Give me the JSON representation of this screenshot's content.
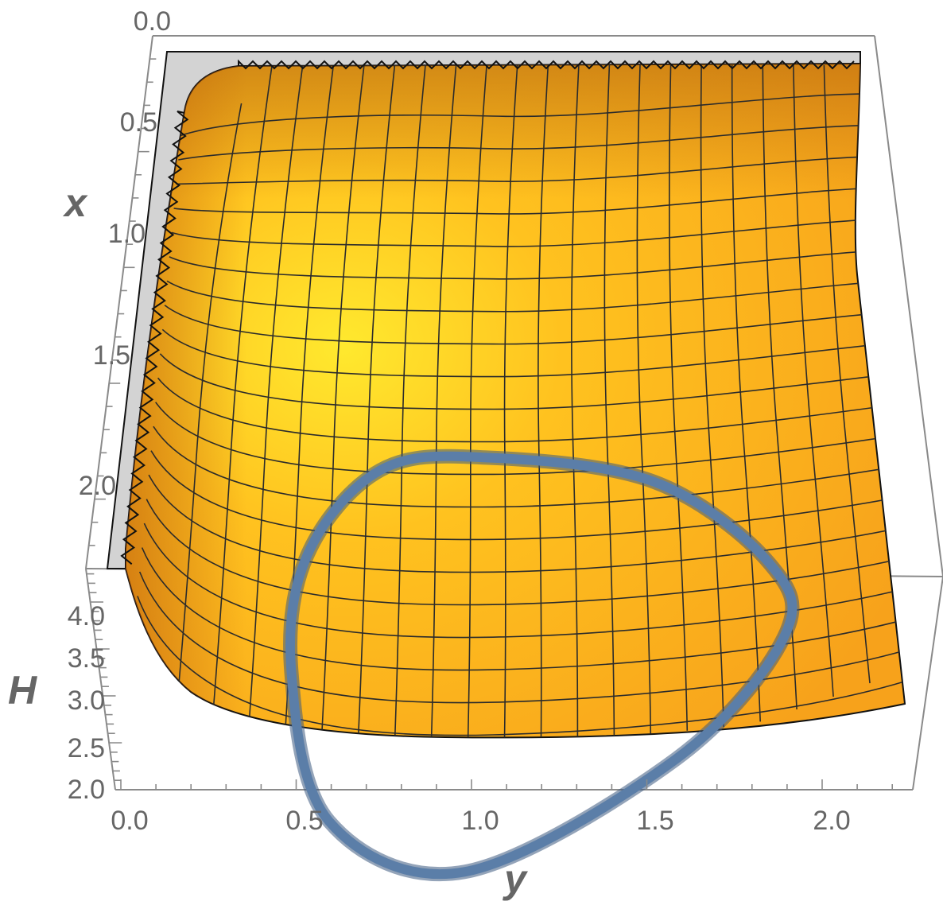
{
  "chart_data": {
    "type": "surface3d",
    "title": "",
    "axes": {
      "x": {
        "label": "x",
        "range": [
          0.0,
          2.3
        ],
        "ticks": [
          "0.0",
          "0.5",
          "1.0",
          "1.5",
          "2.0"
        ]
      },
      "y": {
        "label": "y",
        "range": [
          0.0,
          2.2
        ],
        "ticks": [
          "0.0",
          "0.5",
          "1.0",
          "1.5",
          "2.0"
        ]
      },
      "z": {
        "label": "H",
        "range": [
          2.0,
          4.3
        ],
        "ticks": [
          "2.0",
          "2.5",
          "3.0",
          "3.5",
          "4.0"
        ]
      }
    },
    "surface": {
      "name": "H(x, y)",
      "color": "#F7A21B",
      "highlight_color": "#FFE92E",
      "mesh_color": "#2B2B2B",
      "mesh_lines_y": 20,
      "mesh_lines_x": 20,
      "shape": "valley with minimum near x = 1.4, y = 1.0; rises steeply toward x = 0 and y = 0"
    },
    "level_curve": {
      "name": "closed orbit",
      "color": "#5B7EA8",
      "points": [
        {
          "y": 1.0,
          "x": 1.34
        },
        {
          "y": 1.5,
          "x": 1.45
        },
        {
          "y": 1.85,
          "x": 1.75
        },
        {
          "y": 1.9,
          "x": 2.0
        },
        {
          "y": 1.6,
          "x": 2.4
        },
        {
          "y": 1.0,
          "x": 2.75
        },
        {
          "y": 0.6,
          "x": 2.6
        },
        {
          "y": 0.47,
          "x": 2.1
        },
        {
          "y": 0.5,
          "x": 1.7
        },
        {
          "y": 0.7,
          "x": 1.4
        },
        {
          "y": 1.0,
          "x": 1.34
        }
      ]
    },
    "colors": {
      "box": "#8A8A8A",
      "tick_text": "#666666",
      "back_wall": "#D3D3D3"
    }
  }
}
